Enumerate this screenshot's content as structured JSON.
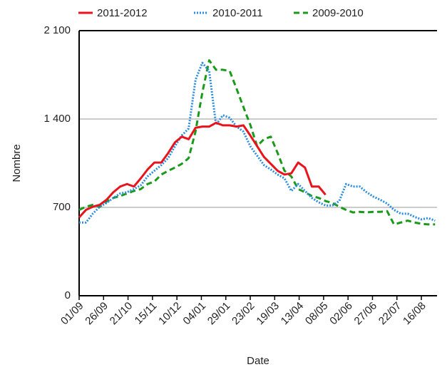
{
  "chart_data": {
    "type": "line",
    "x_label": "Date",
    "y_label": "Nombre",
    "x": [
      0,
      7,
      14,
      21,
      28,
      35,
      42,
      49,
      56,
      63,
      70,
      77,
      84,
      91,
      98,
      105,
      112,
      119,
      126,
      133,
      140,
      147,
      154,
      161,
      168,
      175,
      182,
      189,
      196,
      203,
      210,
      217,
      224,
      231,
      238,
      245,
      252,
      259,
      266,
      273,
      280,
      287,
      294,
      301,
      308,
      315,
      322,
      329,
      336,
      343,
      350,
      357,
      364
    ],
    "series": [
      {
        "name": "2011-2012",
        "color": "#e8141b",
        "dash": "solid",
        "values": [
          620,
          680,
          705,
          720,
          760,
          820,
          865,
          885,
          865,
          930,
          1000,
          1055,
          1055,
          1130,
          1215,
          1260,
          1240,
          1330,
          1340,
          1340,
          1370,
          1350,
          1350,
          1340,
          1350,
          1270,
          1185,
          1100,
          1045,
          990,
          960,
          970,
          1055,
          1015,
          865,
          865,
          800,
          null,
          null,
          null,
          null,
          null,
          null,
          null,
          null,
          null,
          null,
          null,
          null,
          null,
          null,
          null,
          null
        ]
      },
      {
        "name": "2010-2011",
        "color": "#2b8de0",
        "dash": "dot",
        "values": [
          580,
          580,
          650,
          705,
          735,
          775,
          810,
          820,
          845,
          875,
          945,
          990,
          1035,
          1090,
          1185,
          1270,
          1325,
          1710,
          1845,
          1780,
          1355,
          1430,
          1410,
          1340,
          1300,
          1185,
          1110,
          1035,
          1000,
          960,
          930,
          830,
          885,
          830,
          775,
          740,
          715,
          715,
          750,
          885,
          865,
          865,
          820,
          785,
          760,
          730,
          680,
          650,
          650,
          625,
          605,
          615,
          595
        ]
      },
      {
        "name": "2009-2010",
        "color": "#1a9a1a",
        "dash": "dash",
        "values": [
          680,
          705,
          720,
          705,
          745,
          775,
          790,
          810,
          830,
          845,
          885,
          905,
          960,
          990,
          1015,
          1045,
          1090,
          1300,
          1610,
          1865,
          1790,
          1790,
          1780,
          1640,
          1495,
          1355,
          1185,
          1240,
          1260,
          1130,
          990,
          945,
          845,
          820,
          790,
          775,
          750,
          735,
          705,
          680,
          660,
          665,
          660,
          665,
          665,
          670,
          565,
          580,
          595,
          580,
          570,
          565,
          565
        ]
      }
    ],
    "xlim": [
      0,
      366
    ],
    "xticks": [
      {
        "value": 0,
        "label": "01/09"
      },
      {
        "value": 25,
        "label": "26/09"
      },
      {
        "value": 50,
        "label": "21/10"
      },
      {
        "value": 75,
        "label": "15/11"
      },
      {
        "value": 100,
        "label": "10/12"
      },
      {
        "value": 125,
        "label": "04/01"
      },
      {
        "value": 150,
        "label": "29/01"
      },
      {
        "value": 175,
        "label": "23/02"
      },
      {
        "value": 200,
        "label": "19/03"
      },
      {
        "value": 225,
        "label": "13/04"
      },
      {
        "value": 250,
        "label": "08/05"
      },
      {
        "value": 275,
        "label": "02/06"
      },
      {
        "value": 300,
        "label": "27/06"
      },
      {
        "value": 325,
        "label": "22/07"
      },
      {
        "value": 350,
        "label": "16/08"
      }
    ],
    "ylim": [
      0,
      2100
    ],
    "yticks": [
      0,
      700,
      {
        "value": 1400,
        "label": "1 400"
      },
      {
        "value": 2100,
        "label": "2 100"
      }
    ],
    "grid": true,
    "legend": "top"
  }
}
